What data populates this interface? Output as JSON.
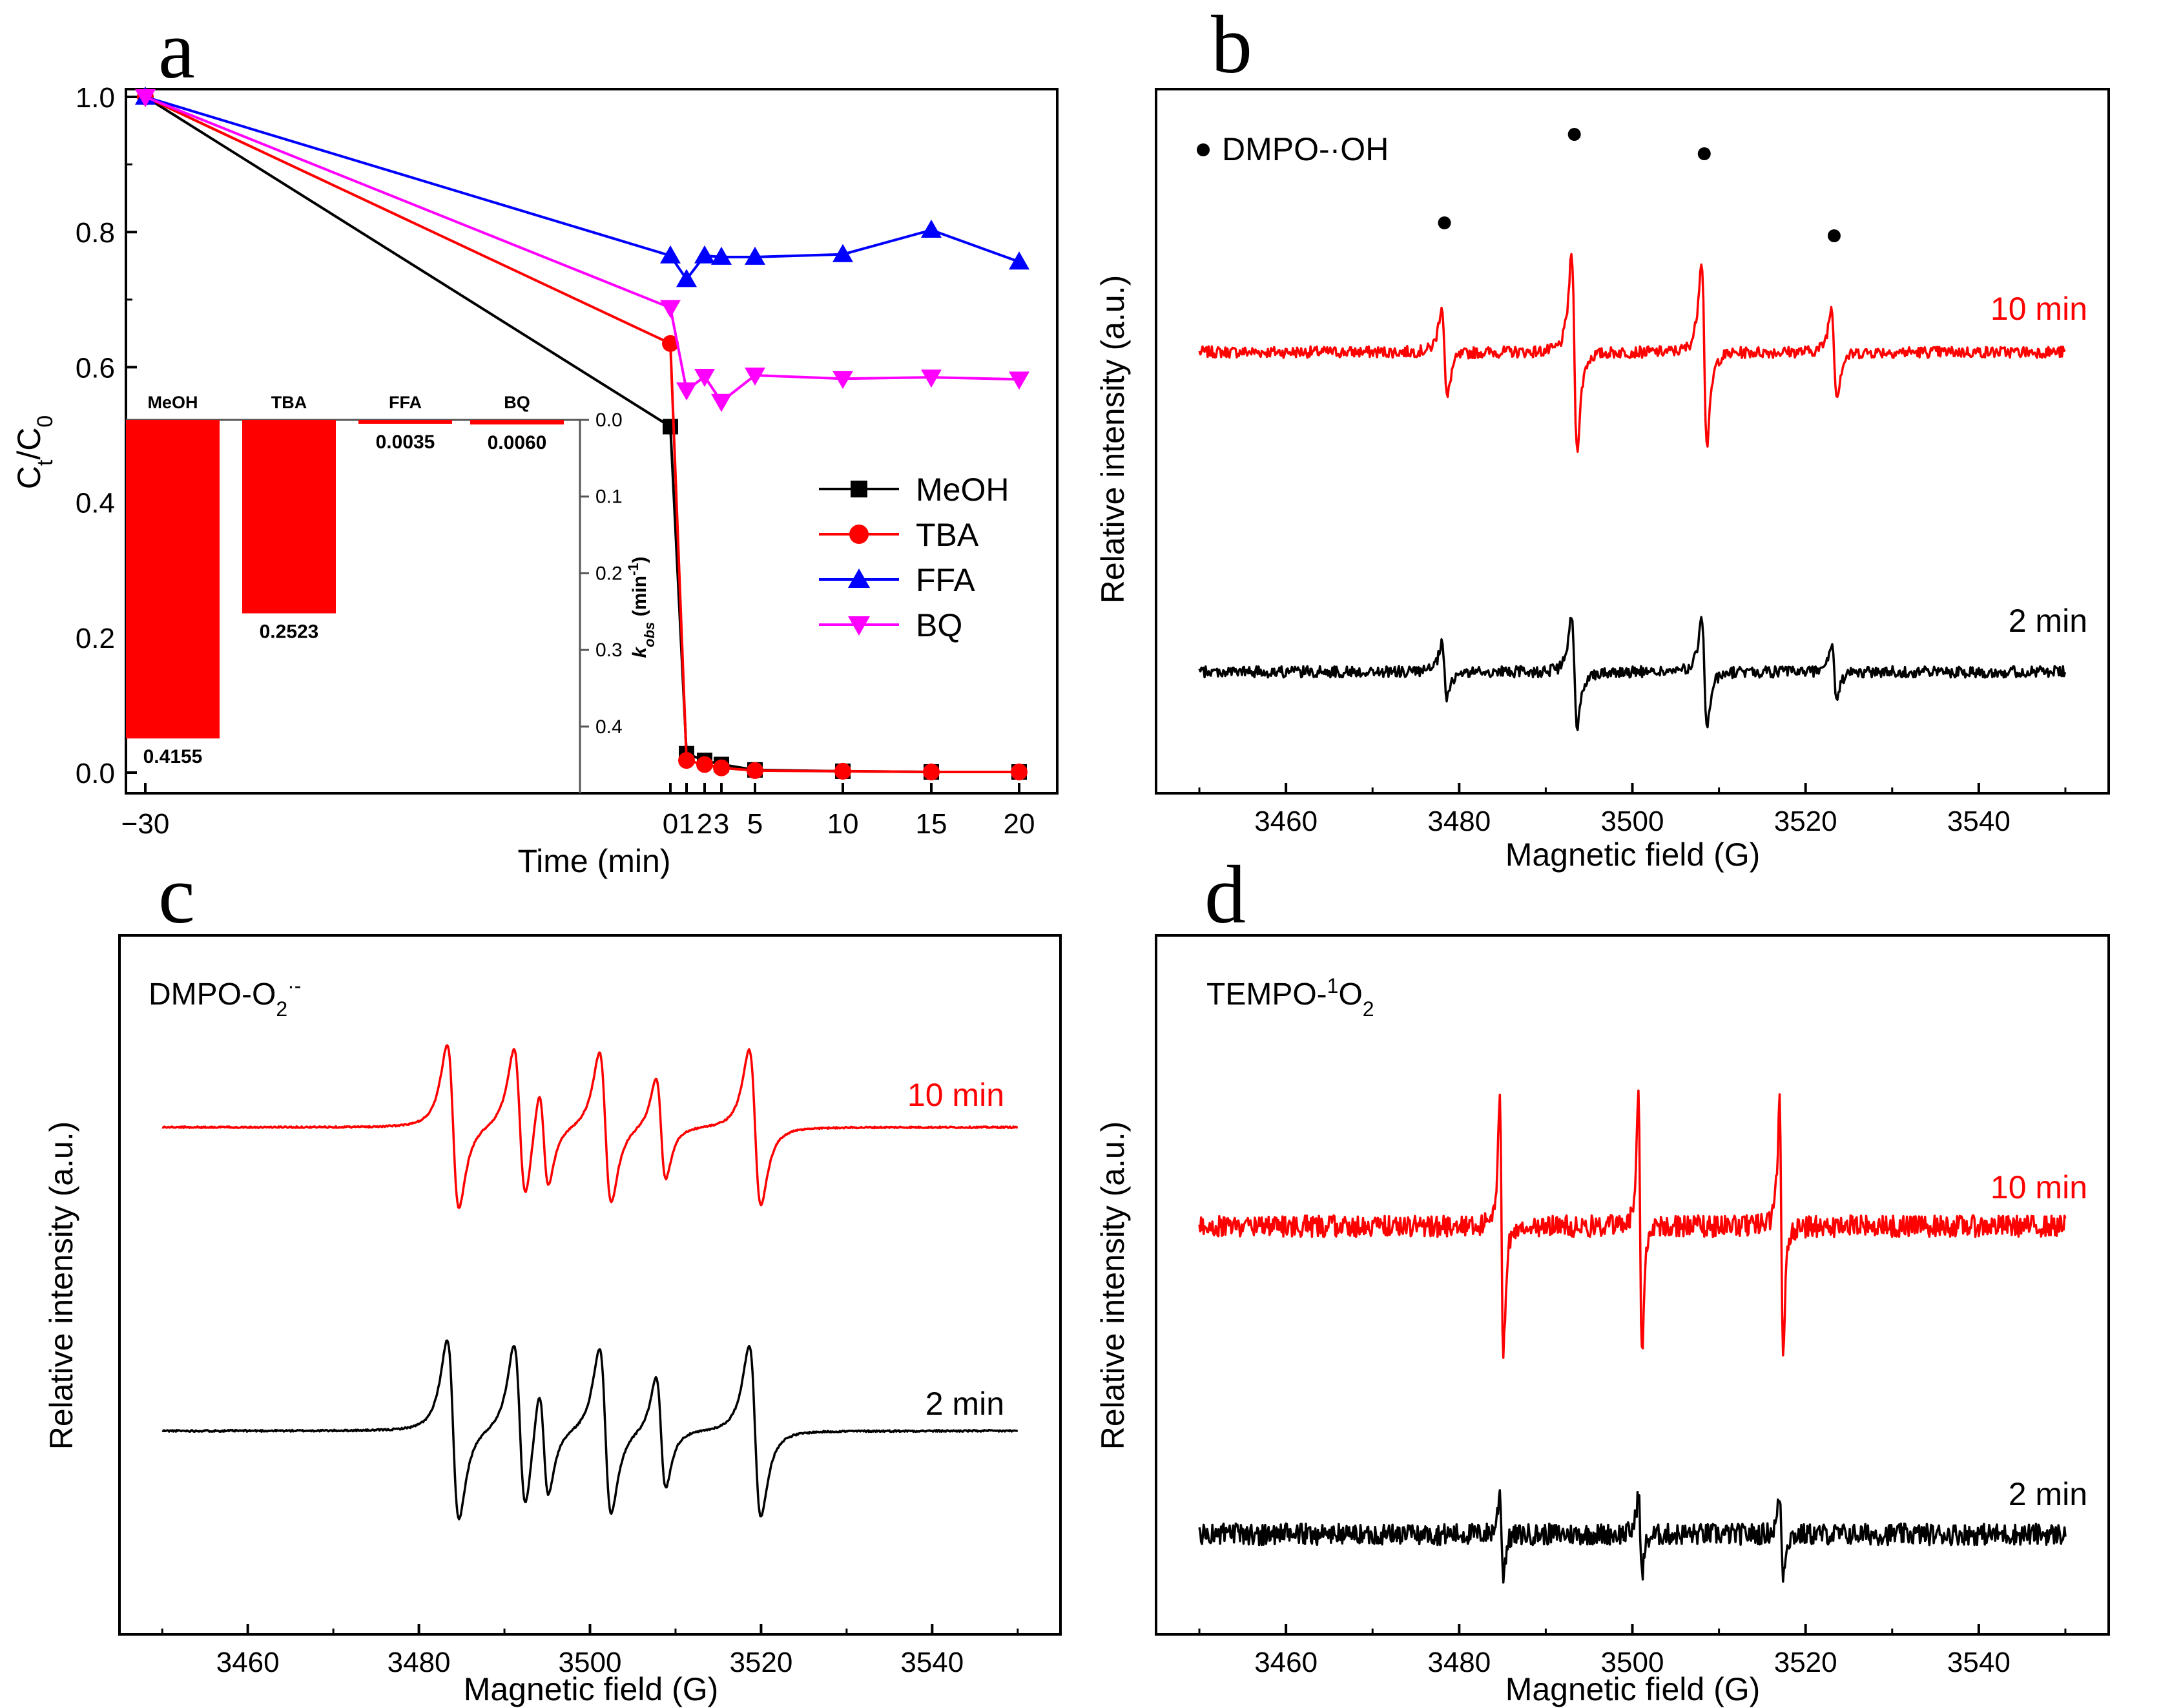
{
  "colors": {
    "black": "#000000",
    "red": "#ff0000",
    "blue": "#0000ff",
    "magenta": "#ff00ff",
    "bar_fill": "#ff0000"
  },
  "chart_data": [
    {
      "panel": "a",
      "type": "line",
      "xlabel": "Time (min)",
      "ylabel_main": "C",
      "ylabel_sub1": "t",
      "ylabel_mid": "/C",
      "ylabel_sub2": "0",
      "xticks": [
        "-30",
        "0",
        "1",
        "2",
        "3",
        "5",
        "10",
        "15",
        "20"
      ],
      "yticks": [
        "0.0",
        "0.2",
        "0.4",
        "0.6",
        "0.8",
        "1.0"
      ],
      "ylim": [
        0,
        1
      ],
      "legend_position": "right-center",
      "series": [
        {
          "name": "MeOH",
          "color": "#000000",
          "marker": "square",
          "x": [
            -30,
            0,
            1,
            2,
            3,
            5,
            10,
            15,
            20
          ],
          "y": [
            1.0,
            0.512,
            0.028,
            0.018,
            0.012,
            0.004,
            0.002,
            0.001,
            0.001
          ]
        },
        {
          "name": "TBA",
          "color": "#ff0000",
          "marker": "circle",
          "x": [
            -30,
            0,
            1,
            2,
            3,
            5,
            10,
            15,
            20
          ],
          "y": [
            1.0,
            0.635,
            0.018,
            0.012,
            0.007,
            0.003,
            0.002,
            0.001,
            0.001
          ]
        },
        {
          "name": "FFA",
          "color": "#0000ff",
          "marker": "triangle-up",
          "x": [
            -30,
            0,
            1,
            2,
            3,
            5,
            10,
            15,
            20
          ],
          "y": [
            1.0,
            0.765,
            0.73,
            0.765,
            0.763,
            0.763,
            0.767,
            0.803,
            0.756
          ]
        },
        {
          "name": "BQ",
          "color": "#ff00ff",
          "marker": "triangle-down",
          "x": [
            -30,
            0,
            1,
            2,
            3,
            5,
            10,
            15,
            20
          ],
          "y": [
            1.0,
            0.688,
            0.566,
            0.586,
            0.549,
            0.588,
            0.583,
            0.585,
            0.582
          ]
        }
      ],
      "inset": {
        "type": "bar",
        "categories": [
          "MeOH",
          "TBA",
          "FFA",
          "BQ"
        ],
        "values": [
          0.4155,
          0.2523,
          0.0035,
          0.006
        ],
        "value_labels": [
          "0.4155",
          "0.2523",
          "0.0035",
          "0.0060"
        ],
        "ylabel": "k",
        "ylabel_sub": "obs",
        "ylabel_unit": " (min",
        "ylabel_sup": "-1",
        "ylabel_close": ")",
        "yticks": [
          "0.0",
          "0.1",
          "0.2",
          "0.3",
          "0.4"
        ],
        "ylim": [
          0,
          0.46
        ],
        "axis_side": "right",
        "inverted": true
      }
    },
    {
      "panel": "b",
      "type": "line",
      "xlabel": "Magnetic field (G)",
      "ylabel": "Relative intensity (a.u.)",
      "xticks": [
        "3460",
        "3480",
        "3500",
        "3520",
        "3540"
      ],
      "xlim": [
        3445,
        3555
      ],
      "annotation": "DMPO-·OH",
      "peak_markers_x": [
        3478.3,
        3493.3,
        3508.3,
        3523.3
      ],
      "peaks": [
        {
          "x": 3478.3,
          "amp": 0.48,
          "w": 0.55
        },
        {
          "x": 3493.3,
          "amp": 1.0,
          "w": 0.55
        },
        {
          "x": 3508.3,
          "amp": 0.96,
          "w": 0.55
        },
        {
          "x": 3523.3,
          "amp": 0.46,
          "w": 0.55
        }
      ],
      "series": [
        {
          "name": "10 min",
          "color": "#ff0000",
          "x_range": [
            3450,
            3550
          ],
          "scale": 1.0
        },
        {
          "name": "2 min",
          "color": "#000000",
          "x_range": [
            3450,
            3550
          ],
          "scale": 0.58
        }
      ]
    },
    {
      "panel": "c",
      "type": "line",
      "xlabel": "Magnetic field (G)",
      "ylabel": "Relative intensity (a.u.)",
      "xticks": [
        "3460",
        "3480",
        "3500",
        "3520",
        "3540"
      ],
      "xlim": [
        3445,
        3555
      ],
      "annotation_main": "DMPO-O",
      "annotation_sub": "2",
      "annotation_sup": "·-",
      "peaks": [
        {
          "x": 3484.0,
          "amp": 1.0,
          "w": 1.2
        },
        {
          "x": 3491.8,
          "amp": 0.92,
          "w": 1.2
        },
        {
          "x": 3494.6,
          "amp": 0.62,
          "w": 1.0
        },
        {
          "x": 3501.8,
          "amp": 0.92,
          "w": 1.2
        },
        {
          "x": 3508.3,
          "amp": 0.62,
          "w": 1.0
        },
        {
          "x": 3519.3,
          "amp": 0.95,
          "w": 1.2
        }
      ],
      "series": [
        {
          "name": "10 min",
          "color": "#ff0000",
          "x_range": [
            3450,
            3550
          ],
          "scale": 1.0
        },
        {
          "name": "2 min",
          "color": "#000000",
          "x_range": [
            3450,
            3550
          ],
          "scale": 1.0
        }
      ]
    },
    {
      "panel": "d",
      "type": "line",
      "xlabel": "Magnetic field (G)",
      "ylabel": "Relative intensity (a.u.)",
      "xticks": [
        "3460",
        "3480",
        "3500",
        "3520",
        "3540"
      ],
      "xlim": [
        3445,
        3555
      ],
      "annotation_main": "TEMPO-",
      "annotation_sup": "1",
      "annotation_tail": "O",
      "annotation_sub": "2",
      "peaks": [
        {
          "x": 3484.9,
          "amp": 1.0,
          "w": 0.35
        },
        {
          "x": 3500.9,
          "amp": 1.0,
          "w": 0.35
        },
        {
          "x": 3517.2,
          "amp": 0.95,
          "w": 0.35
        }
      ],
      "series": [
        {
          "name": "10 min",
          "color": "#ff0000",
          "x_range": [
            3450,
            3550
          ],
          "scale": 1.0
        },
        {
          "name": "2 min",
          "color": "#000000",
          "x_range": [
            3450,
            3550
          ],
          "scale": 0.32
        }
      ]
    }
  ]
}
